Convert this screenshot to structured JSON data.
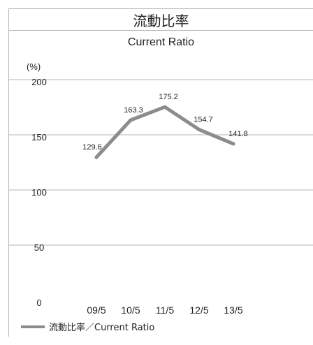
{
  "title_jp": "流動比率",
  "subtitle": "Current Ratio",
  "unit_label": "(%)",
  "legend_label": "流動比率／Current Ratio",
  "colors": {
    "line": "#8c8c8c",
    "grid": "#b5b5b5"
  },
  "chart_data": {
    "type": "line",
    "title": "流動比率",
    "subtitle": "Current Ratio",
    "ylabel": "(%)",
    "categories": [
      "09/5",
      "10/5",
      "11/5",
      "12/5",
      "13/5"
    ],
    "series": [
      {
        "name": "流動比率／Current Ratio",
        "values": [
          129.6,
          163.3,
          175.2,
          154.7,
          141.8
        ]
      }
    ],
    "yticks": [
      0,
      50,
      100,
      150,
      200
    ],
    "ylim": [
      0,
      200
    ],
    "grid": true,
    "legend": "bottom-left"
  }
}
